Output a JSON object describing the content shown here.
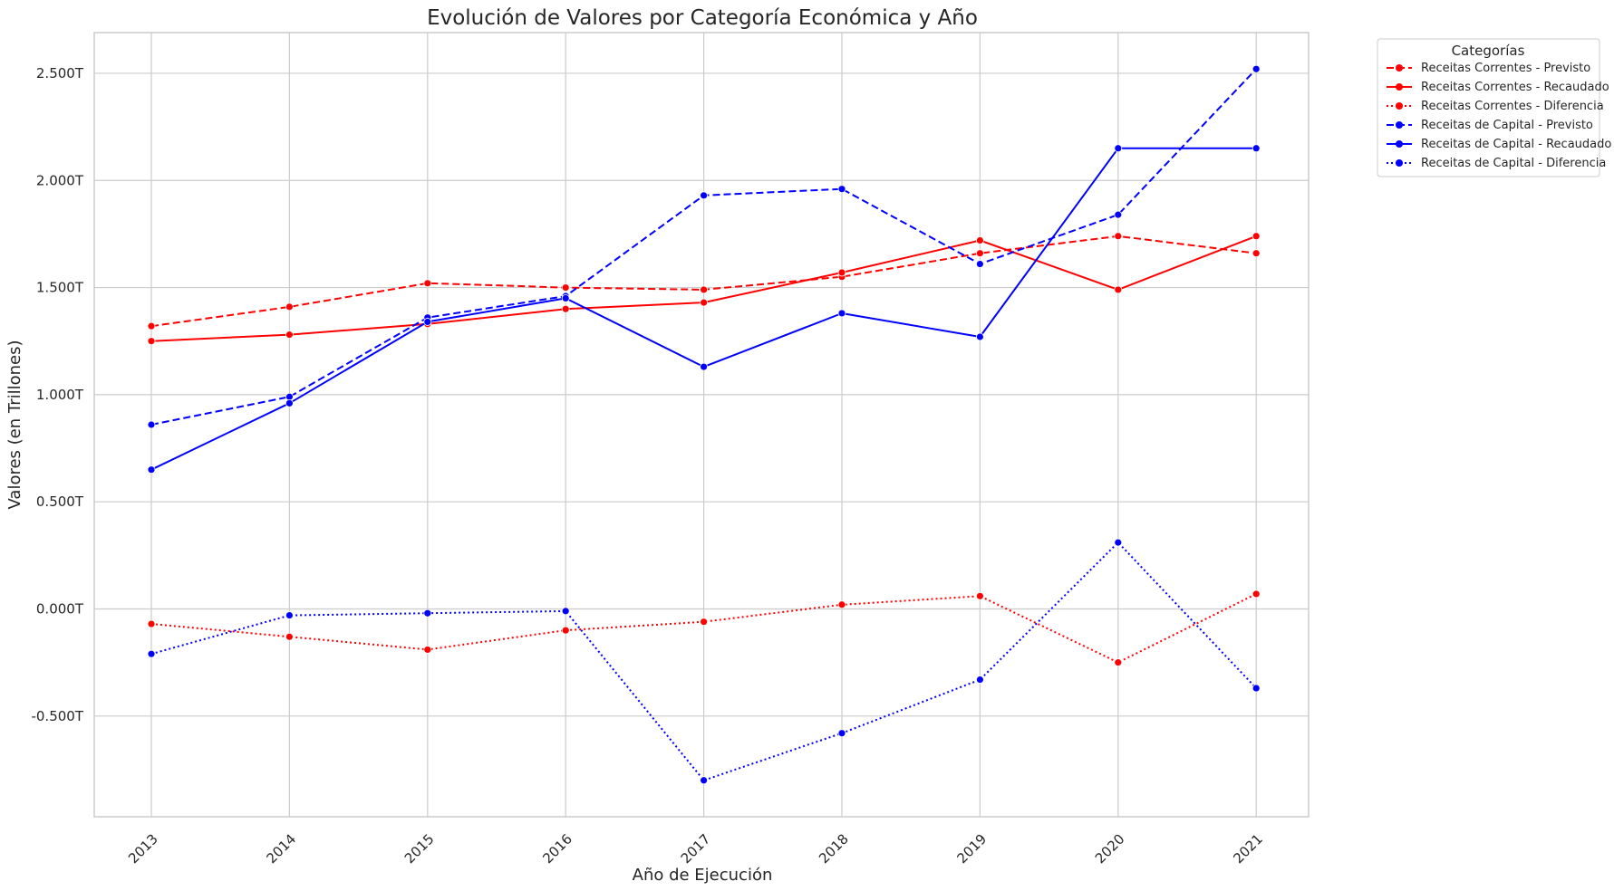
{
  "chart_data": {
    "type": "line",
    "title": "Evolución de Valores por Categoría Económica y Año",
    "xlabel": "Año de Ejecución",
    "ylabel": "Valores (en Trillones)",
    "x": [
      "2013",
      "2014",
      "2015",
      "2016",
      "2017",
      "2018",
      "2019",
      "2020",
      "2021"
    ],
    "ylim": [
      -0.97,
      2.69
    ],
    "yticks": [
      -0.5,
      0.0,
      0.5,
      1.0,
      1.5,
      2.0,
      2.5
    ],
    "ytick_labels": [
      "-0.500T",
      "0.000T",
      "0.500T",
      "1.000T",
      "1.500T",
      "2.000T",
      "2.500T"
    ],
    "grid": true,
    "legend": {
      "title": "Categorías",
      "placement": "outside-top-right"
    },
    "series": [
      {
        "name": "Receitas Correntes - Previsto",
        "color": "#ff0000",
        "style": "dashed",
        "values": [
          1.32,
          1.41,
          1.52,
          1.5,
          1.49,
          1.55,
          1.66,
          1.74,
          1.66
        ]
      },
      {
        "name": "Receitas Correntes - Recaudado",
        "color": "#ff0000",
        "style": "solid",
        "values": [
          1.25,
          1.28,
          1.33,
          1.4,
          1.43,
          1.57,
          1.72,
          1.49,
          1.74
        ]
      },
      {
        "name": "Receitas Correntes - Diferencia",
        "color": "#ff0000",
        "style": "dotted",
        "values": [
          -0.07,
          -0.13,
          -0.19,
          -0.1,
          -0.06,
          0.02,
          0.06,
          -0.25,
          0.07
        ]
      },
      {
        "name": "Receitas de Capital - Previsto",
        "color": "#0000ff",
        "style": "dashed",
        "values": [
          0.86,
          0.99,
          1.36,
          1.46,
          1.93,
          1.96,
          1.61,
          1.84,
          2.52
        ]
      },
      {
        "name": "Receitas de Capital - Recaudado",
        "color": "#0000ff",
        "style": "solid",
        "values": [
          0.65,
          0.96,
          1.34,
          1.45,
          1.13,
          1.38,
          1.27,
          2.15,
          2.15
        ]
      },
      {
        "name": "Receitas de Capital - Diferencia",
        "color": "#0000ff",
        "style": "dotted",
        "values": [
          -0.21,
          -0.03,
          -0.02,
          -0.01,
          -0.8,
          -0.58,
          -0.33,
          0.31,
          -0.37
        ]
      }
    ]
  }
}
